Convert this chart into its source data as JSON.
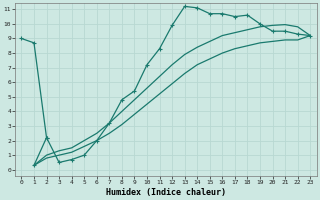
{
  "xlabel": "Humidex (Indice chaleur)",
  "background_color": "#cde8e2",
  "grid_color": "#b8d8d2",
  "line_color": "#1a7a6e",
  "xlim": [
    -0.5,
    23.5
  ],
  "ylim": [
    -0.4,
    11.4
  ],
  "xticks": [
    0,
    1,
    2,
    3,
    4,
    5,
    6,
    7,
    8,
    9,
    10,
    11,
    12,
    13,
    14,
    15,
    16,
    17,
    18,
    19,
    20,
    21,
    22,
    23
  ],
  "yticks": [
    0,
    1,
    2,
    3,
    4,
    5,
    6,
    7,
    8,
    9,
    10,
    11
  ],
  "series1_x": [
    0,
    1,
    2
  ],
  "series1_y": [
    9.0,
    8.7,
    2.2
  ],
  "series2_x": [
    1,
    2,
    3,
    4,
    5,
    6,
    7,
    8,
    9,
    10,
    11,
    12,
    13,
    14,
    15,
    16,
    17,
    18,
    19,
    20,
    21,
    22,
    23
  ],
  "series2_y": [
    0.3,
    2.2,
    0.5,
    0.7,
    1.0,
    2.0,
    3.2,
    4.8,
    5.4,
    7.2,
    8.3,
    9.9,
    11.2,
    11.1,
    10.7,
    10.7,
    10.5,
    10.6,
    10.0,
    9.5,
    9.5,
    9.3,
    9.2
  ],
  "series3_x": [
    1,
    2,
    3,
    4,
    5,
    6,
    7,
    8,
    9,
    10,
    11,
    12,
    13,
    14,
    15,
    16,
    17,
    18,
    19,
    20,
    21,
    22,
    23
  ],
  "series3_y": [
    0.3,
    1.0,
    1.3,
    1.5,
    2.0,
    2.5,
    3.2,
    4.0,
    4.8,
    5.6,
    6.4,
    7.2,
    7.9,
    8.4,
    8.8,
    9.2,
    9.4,
    9.6,
    9.8,
    9.9,
    9.95,
    9.8,
    9.2
  ],
  "series4_x": [
    1,
    2,
    3,
    4,
    5,
    6,
    7,
    8,
    9,
    10,
    11,
    12,
    13,
    14,
    15,
    16,
    17,
    18,
    19,
    20,
    21,
    22,
    23
  ],
  "series4_y": [
    0.3,
    0.8,
    1.0,
    1.2,
    1.6,
    2.0,
    2.5,
    3.1,
    3.8,
    4.5,
    5.2,
    5.9,
    6.6,
    7.2,
    7.6,
    8.0,
    8.3,
    8.5,
    8.7,
    8.8,
    8.9,
    8.9,
    9.2
  ]
}
